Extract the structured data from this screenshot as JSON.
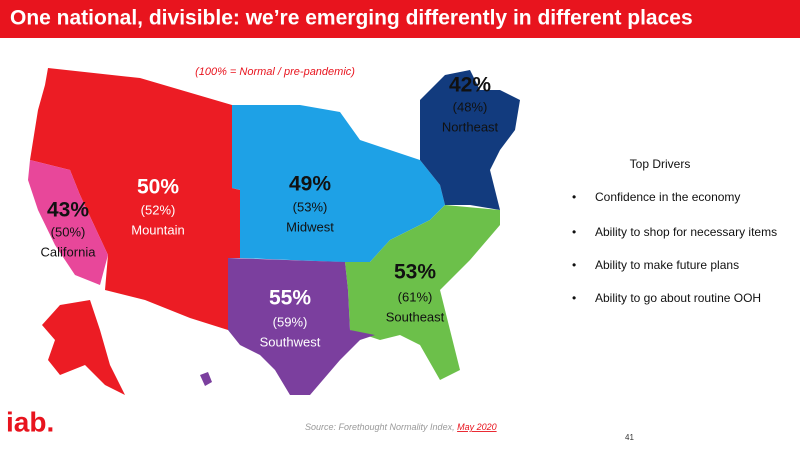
{
  "header": {
    "title": "One national, divisible:  we’re emerging differently in different places"
  },
  "note": "(100% = Normal / pre-pandemic)",
  "regions": [
    {
      "value": "42%",
      "previous": "(48%)",
      "name": "Northeast"
    },
    {
      "value": "49%",
      "previous": "(53%)",
      "name": "Midwest"
    },
    {
      "value": "50%",
      "previous": "(52%)",
      "name": "Mountain"
    },
    {
      "value": "43%",
      "previous": "(50%)",
      "name": "California"
    },
    {
      "value": "55%",
      "previous": "(59%)",
      "name": "Southwest"
    },
    {
      "value": "53%",
      "previous": "(61%)",
      "name": "Southeast"
    }
  ],
  "drivers": {
    "title": "Top Drivers",
    "items": [
      "Confidence in the economy",
      "Ability to shop for necessary items",
      "Ability to make future plans",
      "Ability to go about routine OOH"
    ]
  },
  "footer": {
    "logo": "iab.",
    "source": "Source: Forethought Normality Index, ",
    "source_date": "May 2020",
    "page": "41"
  }
}
